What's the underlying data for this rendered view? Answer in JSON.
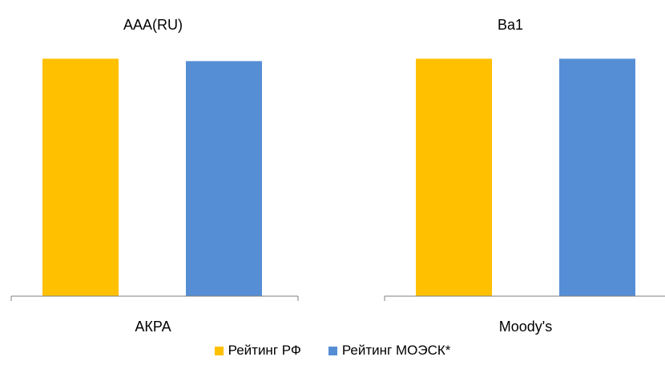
{
  "chart_data": [
    {
      "type": "bar",
      "title": "AAA(RU)",
      "categories": [
        "АКРА"
      ],
      "series": [
        {
          "name": "Рейтинг РФ",
          "values": [
            1
          ]
        },
        {
          "name": "Рейтинг МОЭСК*",
          "values": [
            0.99
          ]
        }
      ],
      "ylim": [
        0,
        1.035
      ],
      "grid": false,
      "legend": "bottom"
    },
    {
      "type": "bar",
      "title": "Ba1",
      "categories": [
        "Moody's"
      ],
      "series": [
        {
          "name": "Рейтинг РФ",
          "values": [
            1
          ]
        },
        {
          "name": "Рейтинг МОЭСК*",
          "values": [
            1
          ]
        }
      ],
      "ylim": [
        0,
        1.035
      ],
      "grid": false,
      "legend": "bottom"
    }
  ],
  "colors": [
    "#FFC000",
    "#558ED5"
  ],
  "legend": [
    {
      "label": "Рейтинг РФ",
      "color": "#FFC000"
    },
    {
      "label": "Рейтинг МОЭСК*",
      "color": "#558ED5"
    }
  ]
}
